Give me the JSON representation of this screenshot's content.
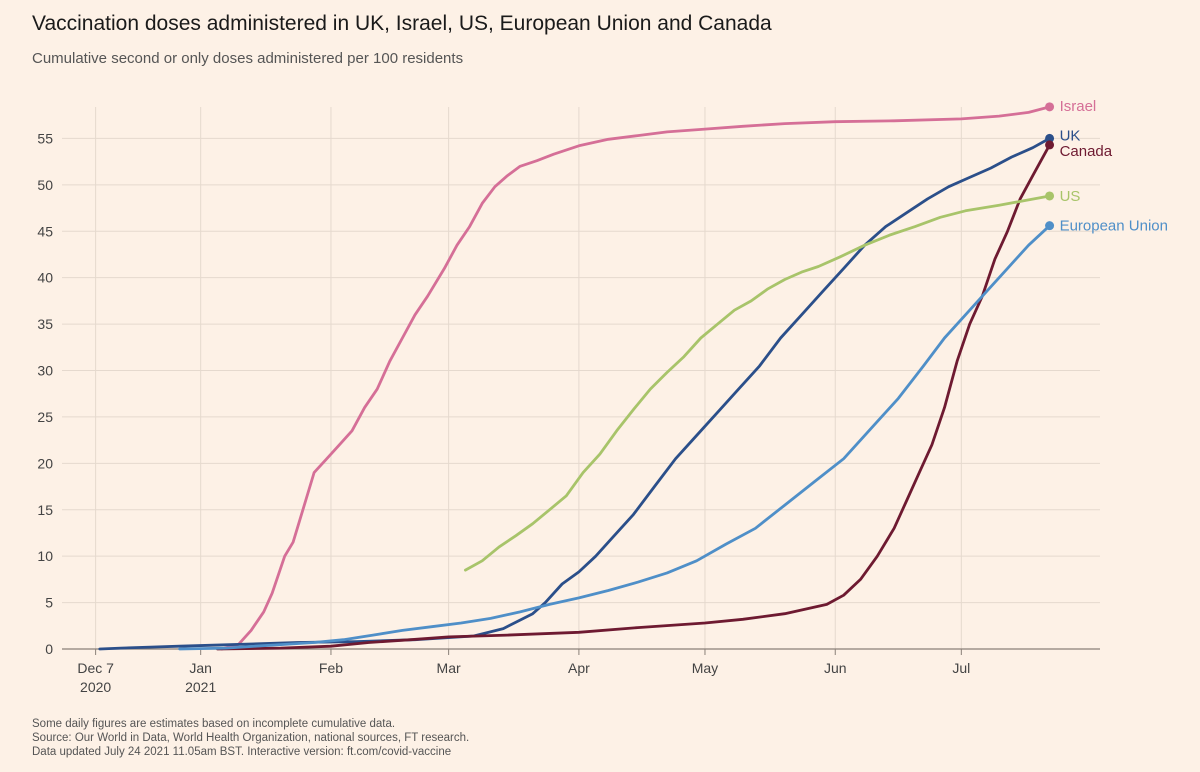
{
  "title": "Vaccination doses administered in UK, Israel, US, European Union and Canada",
  "subtitle": "Cumulative second or only doses administered per 100 residents",
  "footnotes": [
    "Some daily figures are estimates based on incomplete cumulative data.",
    "Source: Our World in Data, World Health Organization, national sources, FT research.",
    "Data updated July 24 2021 11.05am BST. Interactive version: ft.com/covid-vaccine"
  ],
  "colors": {
    "background": "#fdf1e6",
    "grid": "#e5d9ce",
    "axis": "#8a8078",
    "tick_text": "#444444"
  },
  "chart_data": {
    "type": "line",
    "title": "Vaccination doses administered in UK, Israel, US, European Union and Canada",
    "subtitle": "Cumulative second or only doses administered per 100 residents",
    "xlabel": "",
    "ylabel": "",
    "grid": true,
    "legend": "direct labels at line ends (right)",
    "x_range": [
      "2020-11-29",
      "2021-08-03"
    ],
    "ylim": [
      0,
      60
    ],
    "y_ticks": [
      0,
      5,
      10,
      15,
      20,
      25,
      30,
      35,
      40,
      45,
      50,
      55
    ],
    "x_ticks": [
      {
        "date": "2020-12-07",
        "label": "Dec 7",
        "sublabel": "2020"
      },
      {
        "date": "2021-01-01",
        "label": "Jan",
        "sublabel": "2021"
      },
      {
        "date": "2021-02-01",
        "label": "Feb",
        "sublabel": ""
      },
      {
        "date": "2021-03-01",
        "label": "Mar",
        "sublabel": ""
      },
      {
        "date": "2021-04-01",
        "label": "Apr",
        "sublabel": ""
      },
      {
        "date": "2021-05-01",
        "label": "May",
        "sublabel": ""
      },
      {
        "date": "2021-06-01",
        "label": "Jun",
        "sublabel": ""
      },
      {
        "date": "2021-07-01",
        "label": "Jul",
        "sublabel": ""
      }
    ],
    "series": [
      {
        "name": "Israel",
        "color": "#d56f97",
        "label_color": "#d56f97",
        "points": [
          [
            "2021-01-06",
            0
          ],
          [
            "2021-01-10",
            0.5
          ],
          [
            "2021-01-13",
            2
          ],
          [
            "2021-01-16",
            4
          ],
          [
            "2021-01-18",
            6
          ],
          [
            "2021-01-21",
            10
          ],
          [
            "2021-01-23",
            11.5
          ],
          [
            "2021-01-26",
            16
          ],
          [
            "2021-01-28",
            19
          ],
          [
            "2021-01-31",
            20.5
          ],
          [
            "2021-02-03",
            22
          ],
          [
            "2021-02-06",
            23.5
          ],
          [
            "2021-02-09",
            26
          ],
          [
            "2021-02-12",
            28
          ],
          [
            "2021-02-15",
            31
          ],
          [
            "2021-02-18",
            33.5
          ],
          [
            "2021-02-21",
            36
          ],
          [
            "2021-02-24",
            38
          ],
          [
            "2021-02-28",
            41
          ],
          [
            "2021-03-03",
            43.5
          ],
          [
            "2021-03-06",
            45.5
          ],
          [
            "2021-03-09",
            48
          ],
          [
            "2021-03-12",
            49.8
          ],
          [
            "2021-03-15",
            51
          ],
          [
            "2021-03-18",
            52
          ],
          [
            "2021-03-22",
            52.6
          ],
          [
            "2021-03-26",
            53.3
          ],
          [
            "2021-04-01",
            54.2
          ],
          [
            "2021-04-08",
            54.9
          ],
          [
            "2021-04-15",
            55.3
          ],
          [
            "2021-04-22",
            55.7
          ],
          [
            "2021-05-01",
            56.0
          ],
          [
            "2021-05-10",
            56.3
          ],
          [
            "2021-05-20",
            56.6
          ],
          [
            "2021-06-01",
            56.8
          ],
          [
            "2021-06-15",
            56.9
          ],
          [
            "2021-07-01",
            57.1
          ],
          [
            "2021-07-10",
            57.4
          ],
          [
            "2021-07-17",
            57.8
          ],
          [
            "2021-07-22",
            58.4
          ]
        ]
      },
      {
        "name": "UK",
        "color": "#2b4f8a",
        "label_color": "#2b4f8a",
        "points": [
          [
            "2020-12-08",
            0
          ],
          [
            "2020-12-13",
            0.1
          ],
          [
            "2020-12-20",
            0.2
          ],
          [
            "2020-12-27",
            0.3
          ],
          [
            "2021-01-03",
            0.4
          ],
          [
            "2021-01-10",
            0.5
          ],
          [
            "2021-01-24",
            0.7
          ],
          [
            "2021-02-07",
            0.8
          ],
          [
            "2021-02-21",
            1.0
          ],
          [
            "2021-03-07",
            1.4
          ],
          [
            "2021-03-14",
            2.2
          ],
          [
            "2021-03-21",
            3.8
          ],
          [
            "2021-03-24",
            5
          ],
          [
            "2021-03-28",
            7
          ],
          [
            "2021-04-01",
            8.3
          ],
          [
            "2021-04-05",
            10
          ],
          [
            "2021-04-09",
            12
          ],
          [
            "2021-04-14",
            14.5
          ],
          [
            "2021-04-19",
            17.5
          ],
          [
            "2021-04-24",
            20.5
          ],
          [
            "2021-04-29",
            23
          ],
          [
            "2021-05-04",
            25.5
          ],
          [
            "2021-05-09",
            28
          ],
          [
            "2021-05-14",
            30.5
          ],
          [
            "2021-05-19",
            33.5
          ],
          [
            "2021-05-24",
            36
          ],
          [
            "2021-05-29",
            38.5
          ],
          [
            "2021-06-03",
            41
          ],
          [
            "2021-06-08",
            43.5
          ],
          [
            "2021-06-13",
            45.5
          ],
          [
            "2021-06-18",
            47
          ],
          [
            "2021-06-23",
            48.5
          ],
          [
            "2021-06-28",
            49.8
          ],
          [
            "2021-07-03",
            50.8
          ],
          [
            "2021-07-08",
            51.8
          ],
          [
            "2021-07-13",
            53
          ],
          [
            "2021-07-18",
            54
          ],
          [
            "2021-07-22",
            55
          ]
        ]
      },
      {
        "name": "Canada",
        "color": "#6e1a31",
        "label_color": "#6e1a31",
        "points": [
          [
            "2021-01-05",
            0
          ],
          [
            "2021-01-20",
            0.1
          ],
          [
            "2021-02-01",
            0.3
          ],
          [
            "2021-02-10",
            0.7
          ],
          [
            "2021-02-20",
            1.0
          ],
          [
            "2021-03-01",
            1.3
          ],
          [
            "2021-03-15",
            1.5
          ],
          [
            "2021-04-01",
            1.8
          ],
          [
            "2021-04-15",
            2.3
          ],
          [
            "2021-05-01",
            2.8
          ],
          [
            "2021-05-10",
            3.2
          ],
          [
            "2021-05-20",
            3.8
          ],
          [
            "2021-05-30",
            4.8
          ],
          [
            "2021-06-03",
            5.8
          ],
          [
            "2021-06-07",
            7.5
          ],
          [
            "2021-06-11",
            10
          ],
          [
            "2021-06-15",
            13
          ],
          [
            "2021-06-18",
            16
          ],
          [
            "2021-06-21",
            19
          ],
          [
            "2021-06-24",
            22
          ],
          [
            "2021-06-27",
            26
          ],
          [
            "2021-06-30",
            31
          ],
          [
            "2021-07-03",
            35
          ],
          [
            "2021-07-06",
            38
          ],
          [
            "2021-07-09",
            42
          ],
          [
            "2021-07-12",
            45
          ],
          [
            "2021-07-15",
            48.5
          ],
          [
            "2021-07-18",
            51
          ],
          [
            "2021-07-22",
            54.3
          ]
        ]
      },
      {
        "name": "US",
        "color": "#a8c46a",
        "label_color": "#a8c46a",
        "points": [
          [
            "2021-03-05",
            8.5
          ],
          [
            "2021-03-09",
            9.5
          ],
          [
            "2021-03-13",
            11
          ],
          [
            "2021-03-17",
            12.2
          ],
          [
            "2021-03-21",
            13.5
          ],
          [
            "2021-03-25",
            15
          ],
          [
            "2021-03-29",
            16.5
          ],
          [
            "2021-04-02",
            19
          ],
          [
            "2021-04-06",
            21
          ],
          [
            "2021-04-10",
            23.5
          ],
          [
            "2021-04-14",
            25.8
          ],
          [
            "2021-04-18",
            28
          ],
          [
            "2021-04-22",
            29.8
          ],
          [
            "2021-04-26",
            31.5
          ],
          [
            "2021-04-30",
            33.5
          ],
          [
            "2021-05-04",
            35
          ],
          [
            "2021-05-08",
            36.5
          ],
          [
            "2021-05-12",
            37.5
          ],
          [
            "2021-05-16",
            38.8
          ],
          [
            "2021-05-20",
            39.8
          ],
          [
            "2021-05-24",
            40.6
          ],
          [
            "2021-05-28",
            41.2
          ],
          [
            "2021-06-02",
            42.2
          ],
          [
            "2021-06-08",
            43.5
          ],
          [
            "2021-06-14",
            44.6
          ],
          [
            "2021-06-20",
            45.5
          ],
          [
            "2021-06-26",
            46.5
          ],
          [
            "2021-07-02",
            47.2
          ],
          [
            "2021-07-10",
            47.8
          ],
          [
            "2021-07-16",
            48.3
          ],
          [
            "2021-07-22",
            48.8
          ]
        ]
      },
      {
        "name": "European Union",
        "color": "#4f8fc8",
        "label_color": "#4f8fc8",
        "points": [
          [
            "2020-12-27",
            0
          ],
          [
            "2021-01-07",
            0.1
          ],
          [
            "2021-01-14",
            0.3
          ],
          [
            "2021-01-21",
            0.5
          ],
          [
            "2021-01-28",
            0.7
          ],
          [
            "2021-02-04",
            1.0
          ],
          [
            "2021-02-11",
            1.5
          ],
          [
            "2021-02-18",
            2.0
          ],
          [
            "2021-02-25",
            2.4
          ],
          [
            "2021-03-04",
            2.8
          ],
          [
            "2021-03-11",
            3.3
          ],
          [
            "2021-03-18",
            4.0
          ],
          [
            "2021-03-25",
            4.8
          ],
          [
            "2021-04-01",
            5.5
          ],
          [
            "2021-04-08",
            6.3
          ],
          [
            "2021-04-15",
            7.2
          ],
          [
            "2021-04-22",
            8.2
          ],
          [
            "2021-04-29",
            9.5
          ],
          [
            "2021-05-06",
            11.3
          ],
          [
            "2021-05-13",
            13
          ],
          [
            "2021-05-20",
            15.5
          ],
          [
            "2021-05-27",
            18
          ],
          [
            "2021-06-03",
            20.5
          ],
          [
            "2021-06-10",
            24
          ],
          [
            "2021-06-16",
            27
          ],
          [
            "2021-06-22",
            30.5
          ],
          [
            "2021-06-27",
            33.5
          ],
          [
            "2021-07-02",
            36
          ],
          [
            "2021-07-07",
            38.5
          ],
          [
            "2021-07-12",
            41
          ],
          [
            "2021-07-17",
            43.5
          ],
          [
            "2021-07-22",
            45.6
          ]
        ]
      }
    ],
    "end_labels": [
      {
        "series": "Israel",
        "text": "Israel"
      },
      {
        "series": "UK",
        "text": "UK"
      },
      {
        "series": "Canada",
        "text": "Canada"
      },
      {
        "series": "US",
        "text": "US"
      },
      {
        "series": "European Union",
        "text": "European Union"
      }
    ]
  }
}
